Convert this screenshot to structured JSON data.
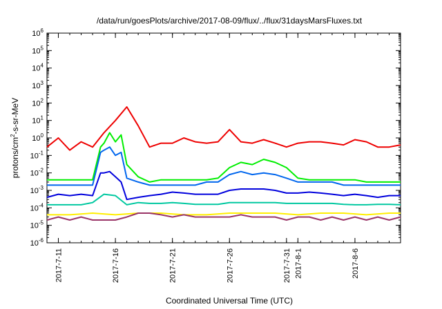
{
  "chart_data": {
    "type": "line",
    "title": "/data/run/goesPlots/archive/2017-08-09/flux/../flux/31daysMarsFluxes.txt",
    "xlabel": "Coordinated Universal Time (UTC)",
    "ylabel": "protons/cm2-s-sr-MeV",
    "ylabel_parts": {
      "a": "protons/cm",
      "b": "2",
      "c": "-s-sr-MeV"
    },
    "y_scale": "log",
    "ylim": [
      1e-06,
      1000000.0
    ],
    "y_ticks": [
      {
        "exp": -6
      },
      {
        "exp": -5
      },
      {
        "exp": -4
      },
      {
        "exp": -3
      },
      {
        "exp": -2
      },
      {
        "exp": -1
      },
      {
        "exp": 0
      },
      {
        "exp": 1
      },
      {
        "exp": 2
      },
      {
        "exp": 3
      },
      {
        "exp": 4
      },
      {
        "exp": 5
      },
      {
        "exp": 6
      }
    ],
    "y_tick_base": "10",
    "xlim": [
      "2017-07-10",
      "2017-08-10"
    ],
    "x_ticks": [
      {
        "date": "2017-07-11",
        "label": "2017-7-11"
      },
      {
        "date": "2017-07-16",
        "label": "2017-7-16"
      },
      {
        "date": "2017-07-21",
        "label": "2017-7-21"
      },
      {
        "date": "2017-07-26",
        "label": "2017-7-26"
      },
      {
        "date": "2017-07-31",
        "label": "2017-7-31"
      },
      {
        "date": "2017-08-01",
        "label": "2017-8-1"
      },
      {
        "date": "2017-08-06",
        "label": "2017-8-6"
      }
    ],
    "grid": false,
    "series": [
      {
        "color": "#ee0000",
        "x": [
          "2017-07-10",
          "2017-07-11",
          "2017-07-12",
          "2017-07-13",
          "2017-07-14",
          "2017-07-15",
          "2017-07-16",
          "2017-07-17",
          "2017-07-18",
          "2017-07-19",
          "2017-07-20",
          "2017-07-21",
          "2017-07-22",
          "2017-07-23",
          "2017-07-24",
          "2017-07-25",
          "2017-07-26",
          "2017-07-27",
          "2017-07-28",
          "2017-07-29",
          "2017-07-30",
          "2017-07-31",
          "2017-08-01",
          "2017-08-02",
          "2017-08-03",
          "2017-08-04",
          "2017-08-05",
          "2017-08-06",
          "2017-08-07",
          "2017-08-08",
          "2017-08-09",
          "2017-08-10"
        ],
        "values": [
          0.3,
          1.0,
          0.2,
          0.6,
          0.3,
          2.0,
          10,
          60,
          5,
          0.3,
          0.5,
          0.5,
          1.0,
          0.6,
          0.5,
          0.6,
          3.0,
          0.6,
          0.5,
          0.8,
          0.5,
          0.3,
          0.5,
          0.6,
          0.6,
          0.5,
          0.4,
          0.8,
          0.6,
          0.3,
          0.3,
          0.4
        ]
      },
      {
        "color": "#00ee00",
        "x": [
          "2017-07-10",
          "2017-07-11",
          "2017-07-12",
          "2017-07-13",
          "2017-07-14",
          "2017-07-14.7",
          "2017-07-15",
          "2017-07-15.5",
          "2017-07-16",
          "2017-07-16.5",
          "2017-07-17",
          "2017-07-18",
          "2017-07-19",
          "2017-07-20",
          "2017-07-21",
          "2017-07-22",
          "2017-07-23",
          "2017-07-24",
          "2017-07-25",
          "2017-07-26",
          "2017-07-27",
          "2017-07-28",
          "2017-07-29",
          "2017-07-30",
          "2017-07-31",
          "2017-08-01",
          "2017-08-02",
          "2017-08-03",
          "2017-08-04",
          "2017-08-05",
          "2017-08-06",
          "2017-08-07",
          "2017-08-08",
          "2017-08-09",
          "2017-08-10"
        ],
        "values": [
          0.004,
          0.004,
          0.004,
          0.004,
          0.004,
          0.3,
          0.5,
          2.0,
          0.6,
          1.5,
          0.03,
          0.006,
          0.003,
          0.004,
          0.004,
          0.004,
          0.004,
          0.004,
          0.005,
          0.02,
          0.04,
          0.03,
          0.06,
          0.04,
          0.02,
          0.005,
          0.004,
          0.004,
          0.004,
          0.004,
          0.004,
          0.003,
          0.003,
          0.003,
          0.003
        ]
      },
      {
        "color": "#0066ee",
        "x": [
          "2017-07-10",
          "2017-07-11",
          "2017-07-12",
          "2017-07-13",
          "2017-07-14",
          "2017-07-14.7",
          "2017-07-15",
          "2017-07-15.5",
          "2017-07-16",
          "2017-07-16.5",
          "2017-07-17",
          "2017-07-18",
          "2017-07-19",
          "2017-07-20",
          "2017-07-21",
          "2017-07-22",
          "2017-07-23",
          "2017-07-24",
          "2017-07-25",
          "2017-07-26",
          "2017-07-27",
          "2017-07-28",
          "2017-07-29",
          "2017-07-30",
          "2017-07-31",
          "2017-08-01",
          "2017-08-02",
          "2017-08-03",
          "2017-08-04",
          "2017-08-05",
          "2017-08-06",
          "2017-08-07",
          "2017-08-08",
          "2017-08-09",
          "2017-08-10"
        ],
        "values": [
          0.002,
          0.002,
          0.002,
          0.002,
          0.002,
          0.15,
          0.2,
          0.3,
          0.1,
          0.15,
          0.005,
          0.003,
          0.002,
          0.002,
          0.002,
          0.002,
          0.002,
          0.003,
          0.003,
          0.008,
          0.012,
          0.008,
          0.01,
          0.008,
          0.005,
          0.003,
          0.003,
          0.003,
          0.003,
          0.002,
          0.002,
          0.002,
          0.002,
          0.002,
          0.002
        ]
      },
      {
        "color": "#0000dd",
        "x": [
          "2017-07-10",
          "2017-07-11",
          "2017-07-12",
          "2017-07-13",
          "2017-07-14",
          "2017-07-14.7",
          "2017-07-15",
          "2017-07-15.5",
          "2017-07-16",
          "2017-07-16.5",
          "2017-07-17",
          "2017-07-18",
          "2017-07-19",
          "2017-07-20",
          "2017-07-21",
          "2017-07-22",
          "2017-07-23",
          "2017-07-24",
          "2017-07-25",
          "2017-07-26",
          "2017-07-27",
          "2017-07-28",
          "2017-07-29",
          "2017-07-30",
          "2017-07-31",
          "2017-08-01",
          "2017-08-02",
          "2017-08-03",
          "2017-08-04",
          "2017-08-05",
          "2017-08-06",
          "2017-08-07",
          "2017-08-08",
          "2017-08-09",
          "2017-08-10"
        ],
        "values": [
          0.0004,
          0.0006,
          0.0005,
          0.0006,
          0.0005,
          0.01,
          0.01,
          0.012,
          0.006,
          0.003,
          0.0003,
          0.0004,
          0.0005,
          0.0006,
          0.0008,
          0.0007,
          0.0006,
          0.0006,
          0.0006,
          0.001,
          0.0012,
          0.0012,
          0.0012,
          0.001,
          0.0007,
          0.0007,
          0.0008,
          0.0007,
          0.0006,
          0.0005,
          0.0006,
          0.0005,
          0.0004,
          0.0005,
          0.0005
        ]
      },
      {
        "color": "#00c8a0",
        "x": [
          "2017-07-10",
          "2017-07-11",
          "2017-07-12",
          "2017-07-13",
          "2017-07-14",
          "2017-07-15",
          "2017-07-16",
          "2017-07-17",
          "2017-07-18",
          "2017-07-19",
          "2017-07-20",
          "2017-07-21",
          "2017-07-22",
          "2017-07-23",
          "2017-07-24",
          "2017-07-25",
          "2017-07-26",
          "2017-07-27",
          "2017-07-28",
          "2017-07-29",
          "2017-07-30",
          "2017-07-31",
          "2017-08-01",
          "2017-08-02",
          "2017-08-03",
          "2017-08-04",
          "2017-08-05",
          "2017-08-06",
          "2017-08-07",
          "2017-08-08",
          "2017-08-09",
          "2017-08-10"
        ],
        "values": [
          0.00015,
          0.00015,
          0.00015,
          0.00015,
          0.0002,
          0.0006,
          0.0005,
          0.00015,
          0.0002,
          0.00018,
          0.00018,
          0.0002,
          0.00018,
          0.00016,
          0.00016,
          0.00016,
          0.0002,
          0.0002,
          0.0002,
          0.0002,
          0.0002,
          0.00018,
          0.00018,
          0.00018,
          0.00018,
          0.00018,
          0.00016,
          0.00015,
          0.00015,
          0.00016,
          0.00016,
          0.00015
        ]
      },
      {
        "color": "#ffee00",
        "x": [
          "2017-07-10",
          "2017-07-12",
          "2017-07-14",
          "2017-07-16",
          "2017-07-18",
          "2017-07-20",
          "2017-07-22",
          "2017-07-24",
          "2017-07-26",
          "2017-07-28",
          "2017-07-30",
          "2017-08-01",
          "2017-08-03",
          "2017-08-05",
          "2017-08-07",
          "2017-08-09",
          "2017-08-10"
        ],
        "values": [
          4e-05,
          4e-05,
          5e-05,
          4e-05,
          5e-05,
          5e-05,
          4e-05,
          4e-05,
          5e-05,
          5e-05,
          5e-05,
          4e-05,
          5e-05,
          5e-05,
          4e-05,
          5e-05,
          5e-05
        ]
      },
      {
        "color": "#993366",
        "x": [
          "2017-07-10",
          "2017-07-11",
          "2017-07-12",
          "2017-07-13",
          "2017-07-14",
          "2017-07-15",
          "2017-07-16",
          "2017-07-17",
          "2017-07-18",
          "2017-07-19",
          "2017-07-20",
          "2017-07-21",
          "2017-07-22",
          "2017-07-23",
          "2017-07-24",
          "2017-07-25",
          "2017-07-26",
          "2017-07-27",
          "2017-07-28",
          "2017-07-29",
          "2017-07-30",
          "2017-07-31",
          "2017-08-01",
          "2017-08-02",
          "2017-08-03",
          "2017-08-04",
          "2017-08-05",
          "2017-08-06",
          "2017-08-07",
          "2017-08-08",
          "2017-08-09",
          "2017-08-10"
        ],
        "values": [
          2e-05,
          3e-05,
          2e-05,
          3e-05,
          2e-05,
          2e-05,
          2e-05,
          3e-05,
          5e-05,
          5e-05,
          4e-05,
          3e-05,
          4e-05,
          3e-05,
          3e-05,
          3e-05,
          3e-05,
          4e-05,
          3e-05,
          3e-05,
          3e-05,
          2e-05,
          3e-05,
          3e-05,
          2e-05,
          3e-05,
          2e-05,
          3e-05,
          2e-05,
          3e-05,
          2e-05,
          3e-05
        ]
      }
    ]
  }
}
